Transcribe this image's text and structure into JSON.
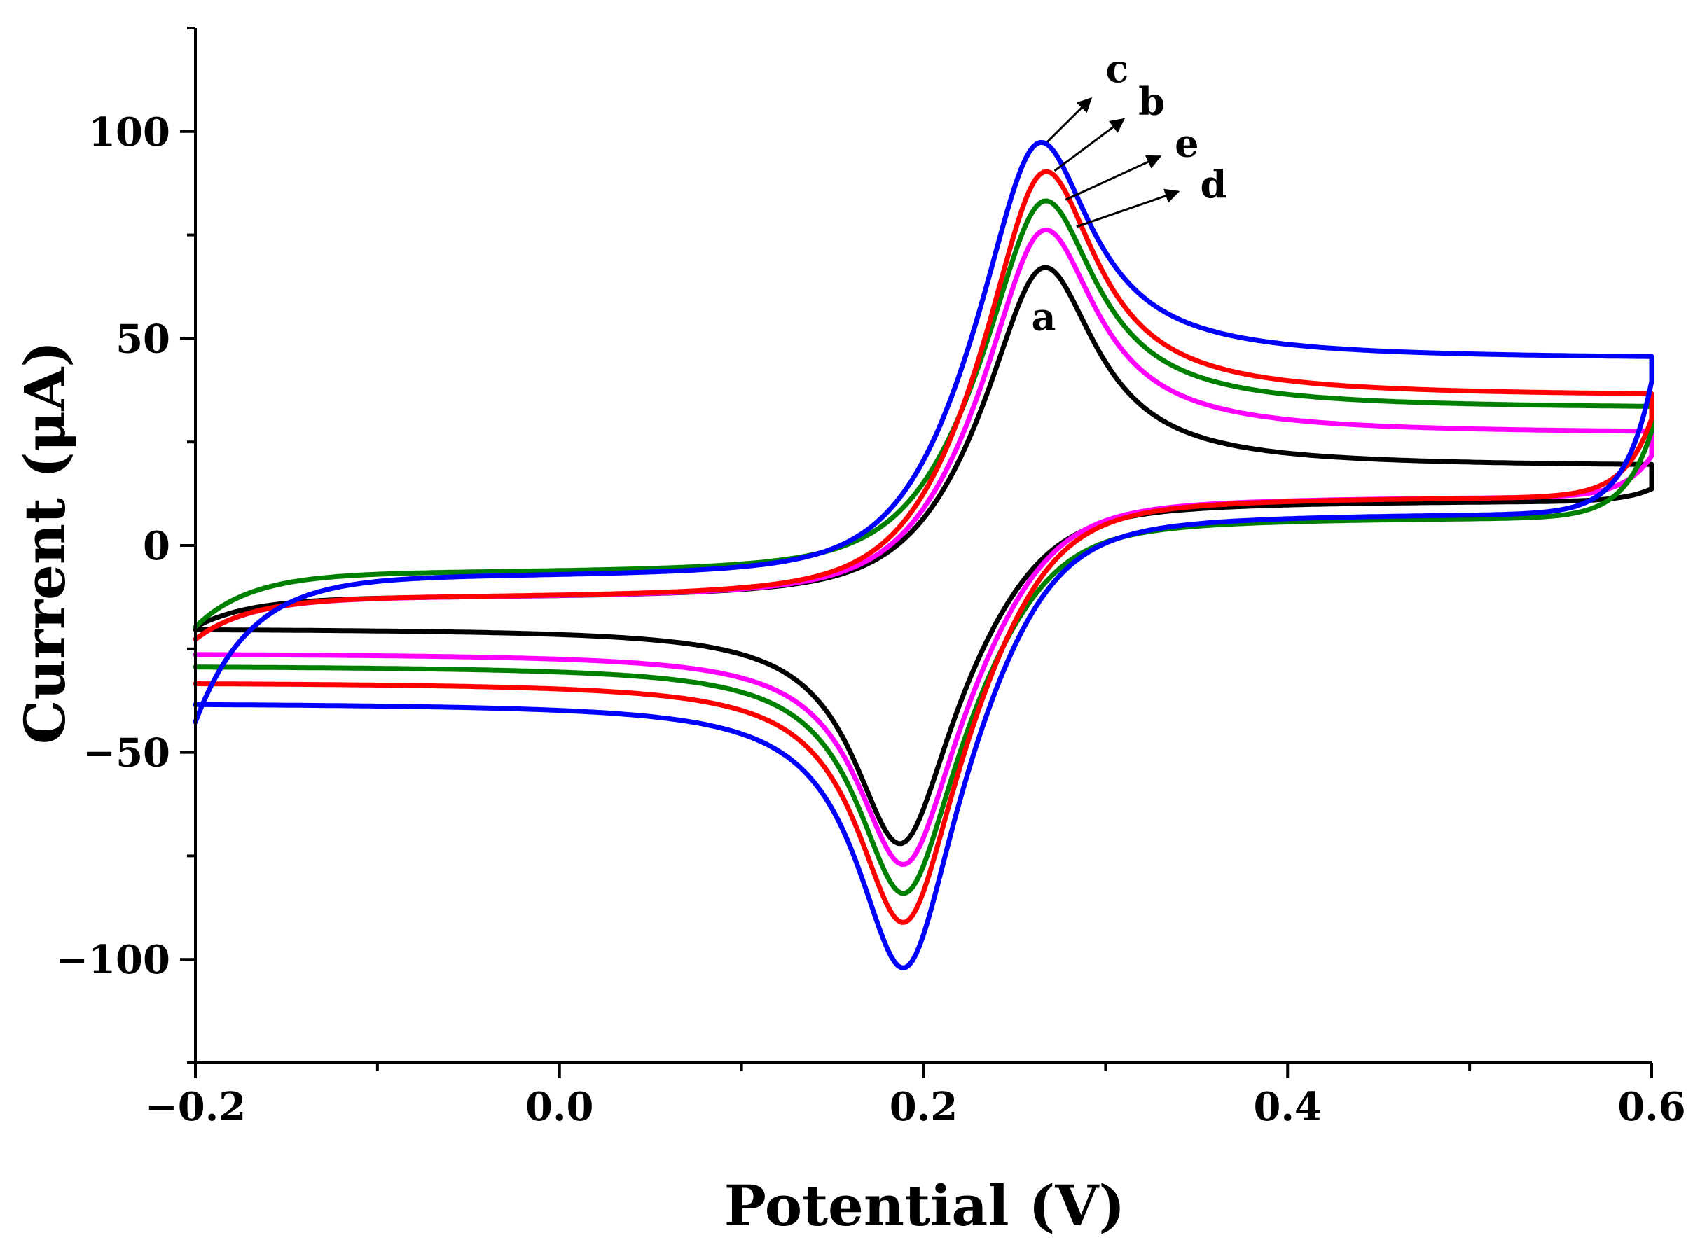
{
  "chart_data": {
    "type": "line",
    "title": "",
    "xlabel": "Potential (V)",
    "ylabel": "Current (μA)",
    "xlim": [
      -0.2,
      0.6
    ],
    "ylim": [
      -125,
      125
    ],
    "x_ticks": [
      -0.2,
      0.0,
      0.2,
      0.4,
      0.6
    ],
    "x_tick_labels": [
      "−0.2",
      "0.0",
      "0.2",
      "0.4",
      "0.6"
    ],
    "y_ticks": [
      -100,
      -50,
      0,
      50,
      100
    ],
    "y_tick_labels": [
      "−100",
      "−50",
      "0",
      "50",
      "100"
    ],
    "grid": false,
    "legend": "none",
    "series": [
      {
        "name": "a",
        "color": "#000000",
        "ipa": 67,
        "epa": 0.265,
        "ipc": -72,
        "epc": 0.188,
        "start": -20,
        "anodic_end": 19,
        "cathodic_base": -20,
        "cathodic_plateau": 11,
        "pre_wave": -13,
        "pre_wave_ox": -9
      },
      {
        "name": "b",
        "color": "#ff0000",
        "ipa": 90,
        "epa": 0.265,
        "ipc": -91,
        "epc": 0.19,
        "start": -23,
        "anodic_end": 36,
        "cathodic_base": -33,
        "cathodic_plateau": 12,
        "pre_wave": -13,
        "pre_wave_ox": -9
      },
      {
        "name": "c",
        "color": "#0000ff",
        "ipa": 97,
        "epa": 0.262,
        "ipc": -102,
        "epc": 0.19,
        "start": -43,
        "anodic_end": 45,
        "cathodic_base": -38,
        "cathodic_plateau": 8,
        "pre_wave": -8,
        "pre_wave_ox": -6
      },
      {
        "name": "d",
        "color": "#ff00ff",
        "ipa": 76,
        "epa": 0.265,
        "ipc": -77,
        "epc": 0.19,
        "start": -23,
        "anodic_end": 27,
        "cathodic_base": -26,
        "cathodic_plateau": 12,
        "pre_wave": -13,
        "pre_wave_ox": -9
      },
      {
        "name": "e",
        "color": "#008000",
        "ipa": 83,
        "epa": 0.265,
        "ipc": -84,
        "epc": 0.19,
        "start": -20,
        "anodic_end": 33,
        "cathodic_base": -29,
        "cathodic_plateau": 7,
        "pre_wave": -7,
        "pre_wave_ox": -5
      }
    ],
    "annotations": [
      {
        "text": "c",
        "type": "arrow",
        "target_series": "c"
      },
      {
        "text": "b",
        "type": "arrow",
        "target_series": "b"
      },
      {
        "text": "e",
        "type": "arrow",
        "target_series": "e"
      },
      {
        "text": "d",
        "type": "arrow",
        "target_series": "d"
      },
      {
        "text": "a",
        "type": "label",
        "target_series": "a"
      }
    ]
  }
}
